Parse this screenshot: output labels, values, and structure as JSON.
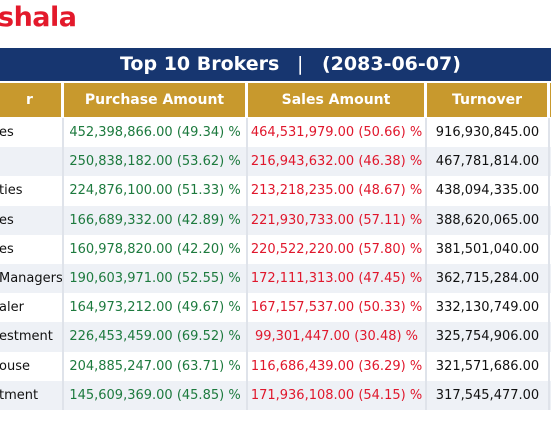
{
  "header": {
    "logo": "shala",
    "title": "Top 10 Brokers",
    "separator": "|",
    "date": "(2083-06-07)"
  },
  "table": {
    "columns": [
      "r",
      "Purchase Amount",
      "Sales Amount",
      "Turnover"
    ],
    "rows": [
      [
        "es",
        "452,398,866.00 (49.34) %",
        "464,531,979.00 (50.66) %",
        "916,930,845.00"
      ],
      [
        null,
        "250,838,182.00 (53.62) %",
        "216,943,632.00 (46.38) %",
        "467,781,814.00"
      ],
      [
        "ties",
        "224,876,100.00 (51.33) %",
        "213,218,235.00 (48.67) %",
        "438,094,335.00"
      ],
      [
        "es",
        "166,689,332.00 (42.89) %",
        "221,930,733.00 (57.11) %",
        "388,620,065.00"
      ],
      [
        "es",
        "160,978,820.00 (42.20) %",
        "220,522,220.00 (57.80) %",
        "381,501,040.00"
      ],
      [
        "Managers",
        "190,603,971.00 (52.55) %",
        "172,111,313.00 (47.45) %",
        "362,715,284.00"
      ],
      [
        "aler",
        "164,973,212.00 (49.67) %",
        "167,157,537.00 (50.33) %",
        "332,130,749.00"
      ],
      [
        "estment",
        "226,453,459.00 (69.52) %",
        "99,301,447.00 (30.48) %",
        "325,754,906.00"
      ],
      [
        "ouse",
        "204,885,247.00 (63.71) %",
        "116,686,439.00 (36.29) %",
        "321,571,686.00"
      ],
      [
        "tment",
        "145,609,369.00 (45.85) %",
        "171,936,108.00 (54.15) %",
        "317,545,477.00"
      ]
    ]
  }
}
